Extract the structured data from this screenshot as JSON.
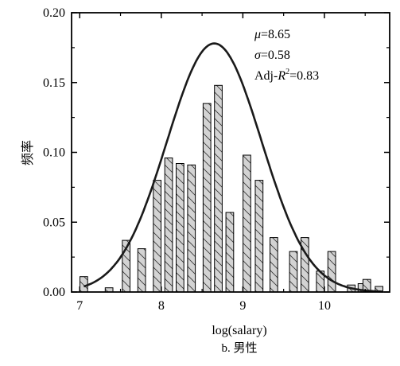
{
  "chart_data": {
    "type": "bar",
    "subtitle": "b. 男性",
    "xlabel": "log(salary)",
    "ylabel": "频率",
    "xlim": [
      6.9,
      10.8
    ],
    "ylim": [
      0,
      0.2
    ],
    "x_ticks": [
      "7",
      "8",
      "9",
      "10"
    ],
    "x_tick_values": [
      7,
      8,
      9,
      10
    ],
    "y_ticks": [
      "0.00",
      "0.05",
      "0.10",
      "0.15",
      "0.20"
    ],
    "y_tick_values": [
      0,
      0.05,
      0.1,
      0.15,
      0.2
    ],
    "bar_width": 0.095,
    "bars": [
      {
        "x": 7.05,
        "value": 0.011
      },
      {
        "x": 7.36,
        "value": 0.003
      },
      {
        "x": 7.57,
        "value": 0.037
      },
      {
        "x": 7.76,
        "value": 0.031
      },
      {
        "x": 7.95,
        "value": 0.08
      },
      {
        "x": 8.09,
        "value": 0.096
      },
      {
        "x": 8.23,
        "value": 0.092
      },
      {
        "x": 8.37,
        "value": 0.091
      },
      {
        "x": 8.56,
        "value": 0.135
      },
      {
        "x": 8.7,
        "value": 0.148
      },
      {
        "x": 8.84,
        "value": 0.057
      },
      {
        "x": 9.05,
        "value": 0.098
      },
      {
        "x": 9.2,
        "value": 0.08
      },
      {
        "x": 9.38,
        "value": 0.039
      },
      {
        "x": 9.62,
        "value": 0.029
      },
      {
        "x": 9.76,
        "value": 0.039
      },
      {
        "x": 9.95,
        "value": 0.015
      },
      {
        "x": 10.09,
        "value": 0.029
      },
      {
        "x": 10.33,
        "value": 0.005
      },
      {
        "x": 10.46,
        "value": 0.006
      },
      {
        "x": 10.52,
        "value": 0.009
      },
      {
        "x": 10.67,
        "value": 0.004
      }
    ],
    "fit_curve": {
      "type": "normal",
      "mu": 8.65,
      "sigma": 0.58,
      "scale": 0.178
    },
    "annotations": [
      {
        "id": "mu",
        "symbol": "μ",
        "rest": "=8.65"
      },
      {
        "id": "sigma",
        "symbol": "σ",
        "rest": "=0.58"
      },
      {
        "id": "r2",
        "prefix": "Adj-",
        "symbol": "R",
        "sup": "2",
        "rest": "=0.83"
      }
    ],
    "colors": {
      "bar_fill": "#d3d3d3",
      "bar_stroke": "#000000",
      "hatch": "#333333",
      "curve": "#1a1a1a"
    }
  }
}
